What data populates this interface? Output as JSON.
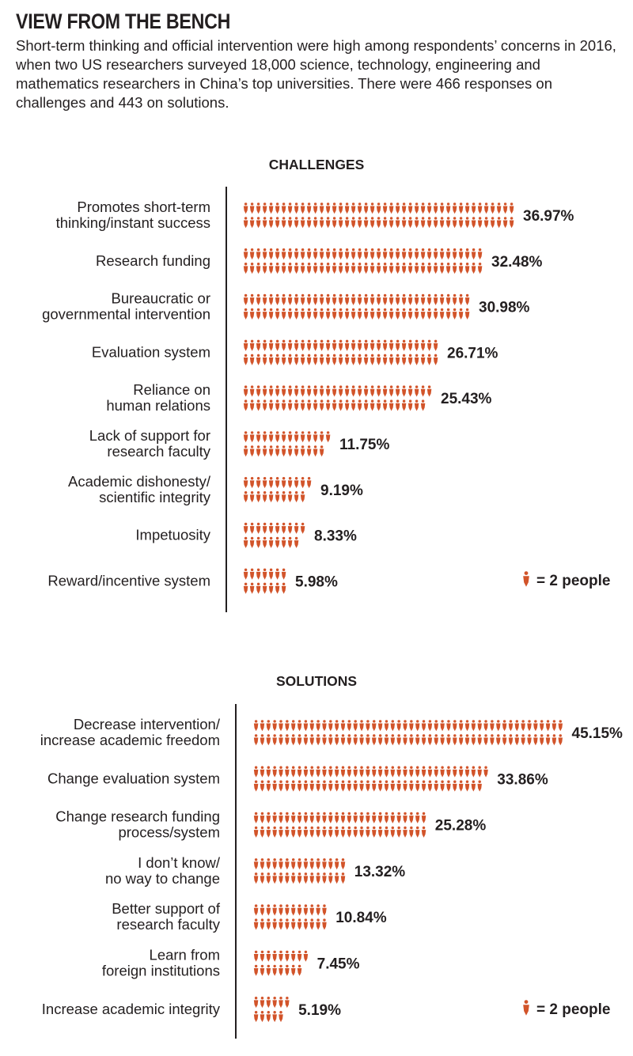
{
  "title": "VIEW FROM THE BENCH",
  "subtitle": "Short-term thinking and official intervention were high among respondents’ concerns in 2016, when two US researchers surveyed 18,000 science, technology, engineering and mathematics researchers in China’s top universities. There were 466 responses on challenges and 443 on solutions.",
  "colors": {
    "icon": "#d2542a",
    "text": "#231f20",
    "axis": "#231f20",
    "background": "#ffffff"
  },
  "icon_name": "person-icon",
  "chart_data": [
    {
      "type": "bar",
      "title": "CHALLENGES",
      "xlabel": "",
      "ylabel": "",
      "unit": "percent of respondents",
      "total_responses": 466,
      "people_per_icon": 2,
      "legend": "= 2 people",
      "categories": [
        [
          "Promotes short-term",
          "thinking/instant success"
        ],
        [
          "Research funding"
        ],
        [
          "Bureaucratic or",
          "governmental intervention"
        ],
        [
          "Evaluation system"
        ],
        [
          "Reliance on",
          "human relations"
        ],
        [
          "Lack of support for",
          "research faculty"
        ],
        [
          "Academic dishonesty/",
          "scientific integrity"
        ],
        [
          "Impetuosity"
        ],
        [
          "Reward/incentive system"
        ]
      ],
      "values": [
        36.97,
        32.48,
        30.98,
        26.71,
        25.43,
        11.75,
        9.19,
        8.33,
        5.98
      ],
      "value_labels": [
        "36.97%",
        "32.48%",
        "30.98%",
        "26.71%",
        "25.43%",
        "11.75%",
        "9.19%",
        "8.33%",
        "5.98%"
      ]
    },
    {
      "type": "bar",
      "title": "SOLUTIONS",
      "xlabel": "",
      "ylabel": "",
      "unit": "percent of respondents",
      "total_responses": 443,
      "people_per_icon": 2,
      "legend": "= 2 people",
      "categories": [
        [
          "Decrease intervention/",
          "increase academic freedom"
        ],
        [
          "Change evaluation system"
        ],
        [
          "Change research funding",
          "process/system"
        ],
        [
          "I don’t know/",
          "no way to change"
        ],
        [
          "Better support of",
          "research faculty"
        ],
        [
          "Learn from",
          "foreign institutions"
        ],
        [
          "Increase academic integrity"
        ]
      ],
      "values": [
        45.15,
        33.86,
        25.28,
        13.32,
        10.84,
        7.45,
        5.19
      ],
      "value_labels": [
        "45.15%",
        "33.86%",
        "25.28%",
        "13.32%",
        "10.84%",
        "7.45%",
        "5.19%"
      ]
    }
  ]
}
